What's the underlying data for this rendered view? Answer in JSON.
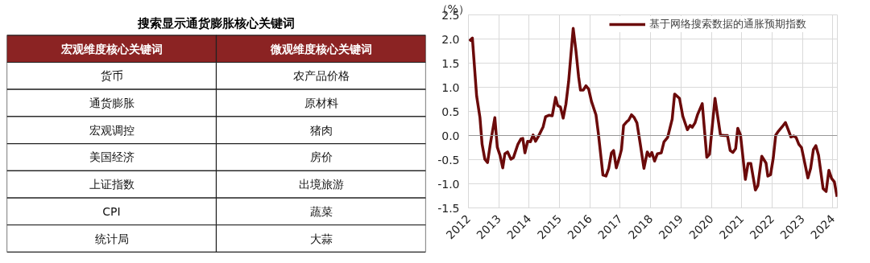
{
  "chart_data": [
    {
      "type": "other",
      "title": "搜索显示通货膨胀核心关键词",
      "annotations": [
        "宏观维度核心关键词",
        "微观维度核心关键词",
        "货币",
        "农产品价格",
        "通货膨胀",
        "原材料",
        "宏观调控",
        "猪肉",
        "美国经济",
        "房价",
        "上证指数",
        "出境旅游",
        "CPI",
        "蔬菜",
        "统计局",
        "大蒜"
      ]
    },
    {
      "type": "line",
      "ylabel": "（%）",
      "legend": "top",
      "grid": true,
      "xlim": [
        2012,
        2024.15
      ],
      "xticks": [
        2012,
        2013,
        2014,
        2015,
        2016,
        2017,
        2018,
        2019,
        2020,
        2021,
        2022,
        2023,
        2024
      ],
      "ylim": [
        -1.5,
        2.5
      ],
      "yticks": [
        {
          "value": -1.5,
          "label": "-1.5"
        },
        {
          "value": -1,
          "label": "-1.0"
        },
        {
          "value": -0.5,
          "label": "-0.5"
        },
        {
          "value": 0,
          "label": "0.0"
        },
        {
          "value": 0.5,
          "label": "0.5"
        },
        {
          "value": 1,
          "label": "1.0"
        },
        {
          "value": 1.5,
          "label": "1.5"
        },
        {
          "value": 2,
          "label": "2.0"
        },
        {
          "value": 2.5,
          "label": "2.5"
        }
      ],
      "ref_lines": [
        {
          "axis": "y",
          "value": 0,
          "label": null,
          "color": "#999999"
        }
      ],
      "series": [
        {
          "name": "基于网络搜索数据的通胀预期指数",
          "color": "#6b0a0a",
          "x": [
            2012.03,
            2012.13,
            2012.27,
            2012.38,
            2012.45,
            2012.54,
            2012.63,
            2012.72,
            2012.87,
            2012.95,
            2013.04,
            2013.13,
            2013.2,
            2013.29,
            2013.4,
            2013.48,
            2013.63,
            2013.73,
            2013.79,
            2013.86,
            2013.95,
            2014.04,
            2014.13,
            2014.21,
            2014.31,
            2014.46,
            2014.54,
            2014.65,
            2014.76,
            2014.87,
            2014.94,
            2015.03,
            2015.12,
            2015.21,
            2015.3,
            2015.38,
            2015.45,
            2015.54,
            2015.63,
            2015.69,
            2015.78,
            2015.87,
            2015.96,
            2016.05,
            2016.2,
            2016.28,
            2016.43,
            2016.53,
            2016.62,
            2016.71,
            2016.78,
            2016.87,
            2016.97,
            2017.04,
            2017.11,
            2017.22,
            2017.28,
            2017.37,
            2017.46,
            2017.55,
            2017.66,
            2017.78,
            2017.89,
            2017.97,
            2018.04,
            2018.13,
            2018.22,
            2018.35,
            2018.44,
            2018.56,
            2018.71,
            2018.79,
            2018.95,
            2019.06,
            2019.21,
            2019.3,
            2019.37,
            2019.46,
            2019.55,
            2019.7,
            2019.85,
            2019.94,
            2020.12,
            2020.3,
            2020.43,
            2020.53,
            2020.62,
            2020.71,
            2020.8,
            2020.87,
            2020.96,
            2021.12,
            2021.21,
            2021.3,
            2021.45,
            2021.53,
            2021.66,
            2021.8,
            2021.86,
            2021.95,
            2022.04,
            2022.12,
            2022.21,
            2022.33,
            2022.44,
            2022.55,
            2022.62,
            2022.71,
            2022.79,
            2022.88,
            2022.97,
            2023.18,
            2023.27,
            2023.36,
            2023.44,
            2023.53,
            2023.68,
            2023.78,
            2023.87,
            2023.96,
            2024.05,
            2024.14
          ],
          "values": [
            1.96,
            2.02,
            0.82,
            0.37,
            -0.18,
            -0.49,
            -0.56,
            -0.18,
            0.37,
            -0.24,
            -0.41,
            -0.67,
            -0.38,
            -0.34,
            -0.49,
            -0.46,
            -0.18,
            -0.07,
            -0.06,
            -0.36,
            -0.12,
            -0.13,
            0.01,
            -0.12,
            -0.01,
            0.18,
            0.39,
            0.42,
            0.41,
            0.79,
            0.62,
            0.59,
            0.36,
            0.65,
            1.12,
            1.71,
            2.22,
            1.76,
            1.21,
            0.94,
            0.94,
            1.03,
            0.96,
            0.71,
            0.43,
            0.04,
            -0.82,
            -0.84,
            -0.68,
            -0.36,
            -0.31,
            -0.67,
            -0.46,
            -0.29,
            0.21,
            0.29,
            0.32,
            0.43,
            0.37,
            0.26,
            -0.18,
            -0.68,
            -0.34,
            -0.43,
            -0.35,
            -0.53,
            -0.38,
            -0.36,
            -0.13,
            -0.04,
            0.34,
            0.86,
            0.77,
            0.4,
            0.12,
            0.21,
            0.17,
            0.26,
            0.44,
            0.66,
            -0.45,
            -0.39,
            0.77,
            0.01,
            0.0,
            0.0,
            -0.31,
            -0.35,
            -0.27,
            0.15,
            0.01,
            -0.91,
            -0.58,
            -0.58,
            -1.13,
            -1.04,
            -0.43,
            -0.57,
            -0.84,
            -0.81,
            -0.46,
            0.01,
            0.09,
            0.18,
            0.27,
            0.09,
            -0.03,
            -0.01,
            -0.04,
            -0.18,
            -0.25,
            -0.88,
            -0.68,
            -0.29,
            -0.21,
            -0.41,
            -1.1,
            -1.16,
            -0.72,
            -0.89,
            -0.96,
            -1.27
          ]
        }
      ]
    }
  ]
}
